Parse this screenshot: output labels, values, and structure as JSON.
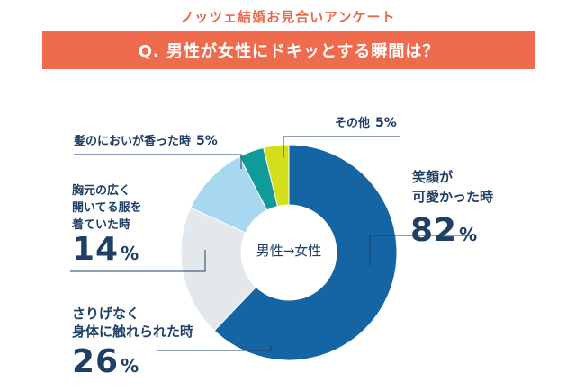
{
  "header": {
    "survey_title": "ノッツェ結婚お見合いアンケート",
    "question": "Q. 男性が女性にドキッとする瞬間は？"
  },
  "chart_data": {
    "type": "pie",
    "title": "Q. 男性が女性にドキッとする瞬間は？",
    "center_label": "男性→女性",
    "labels": [
      "笑顔が可愛かった時",
      "さりげなく身体に触れられた時",
      "胸元の広く開いてる服を着ていた時",
      "髪のにおいが香った時",
      "その他"
    ],
    "values": [
      82,
      26,
      14,
      5,
      5
    ],
    "unit": "%",
    "colors": [
      "#1565a4",
      "#e3e8ec",
      "#a7d8f0",
      "#119a9a",
      "#d3df1a"
    ]
  },
  "annotations": {
    "smile": {
      "line1": "笑顔が",
      "line2": "可愛かった時",
      "value": "82",
      "unit": "%"
    },
    "touch": {
      "line1": "さりげなく",
      "line2": "身体に触れられた時",
      "value": "26",
      "unit": "%"
    },
    "chest": {
      "line1": "胸元の広く",
      "line2": "開いてる服を",
      "line3": "着ていた時",
      "value": "14",
      "unit": "%"
    },
    "hair": {
      "text": "髪のにおいが香った時",
      "value": "5",
      "unit": "%"
    },
    "other": {
      "text": "その他",
      "value": "5",
      "unit": "%"
    }
  }
}
